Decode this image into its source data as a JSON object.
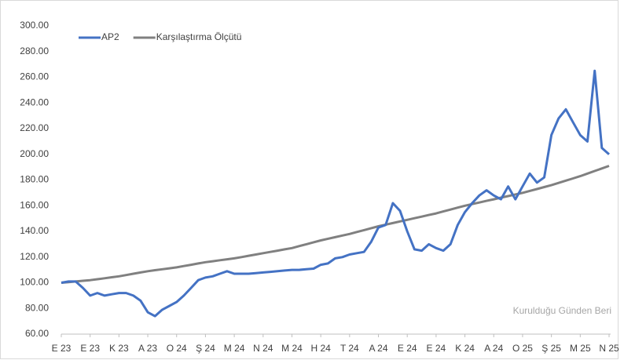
{
  "chart_data": {
    "type": "line",
    "annotation": "Kurulduğu Günden Beri",
    "categories": [
      "E 23",
      null,
      null,
      null,
      "E 23",
      null,
      null,
      null,
      "K 23",
      null,
      null,
      null,
      "A 23",
      null,
      null,
      null,
      "O 24",
      null,
      null,
      null,
      "Ş 24",
      null,
      null,
      null,
      "M 24",
      null,
      null,
      null,
      "N 24",
      null,
      null,
      null,
      "M 24",
      null,
      null,
      null,
      "H 24",
      null,
      null,
      null,
      "T 24",
      null,
      null,
      null,
      "A 24",
      null,
      null,
      null,
      "E 24",
      null,
      null,
      null,
      "E 24",
      null,
      null,
      null,
      "K 24",
      null,
      null,
      null,
      "A 24",
      null,
      null,
      null,
      "O 25",
      null,
      null,
      null,
      "Ş 25",
      null,
      null,
      null,
      "M 25",
      null,
      null,
      null,
      "N 25"
    ],
    "series": [
      {
        "name": "AP2",
        "color": "#4472c4",
        "values": [
          100,
          101,
          101,
          96,
          90,
          92,
          90,
          91,
          92,
          92,
          90,
          86,
          77,
          74,
          79,
          82,
          85,
          90,
          96,
          102,
          104,
          105,
          107,
          109,
          107,
          107,
          107,
          107.5,
          108,
          108.5,
          109,
          109.5,
          110,
          110,
          110.5,
          111,
          114,
          115,
          119,
          120,
          122,
          123,
          124,
          132,
          143,
          145,
          162,
          156,
          140,
          126,
          125,
          130,
          127,
          125,
          130,
          145,
          155,
          162,
          168,
          172,
          168,
          165,
          175,
          165,
          175,
          185,
          178,
          182,
          215,
          228,
          235,
          225,
          215,
          210,
          265,
          205,
          200
        ]
      },
      {
        "name": "Karşılaştırma Ölçütü",
        "color": "#808080",
        "values": [
          100,
          100.5,
          101,
          101.5,
          102,
          102.75,
          103.5,
          104.25,
          105,
          106,
          107,
          108,
          109,
          109.75,
          110.5,
          111.25,
          112,
          113,
          114,
          115,
          116,
          116.75,
          117.5,
          118.25,
          119,
          120,
          121,
          122,
          123,
          124,
          125,
          126,
          127,
          128.5,
          130,
          131.5,
          133,
          134.25,
          135.5,
          136.75,
          138,
          139.5,
          141,
          142.5,
          144,
          145.25,
          146.5,
          147.75,
          149,
          150.25,
          151.5,
          152.75,
          154,
          155.5,
          157,
          158.5,
          160,
          161.25,
          162.5,
          163.75,
          165,
          166.25,
          167.5,
          168.75,
          170,
          171.5,
          173,
          174.5,
          176,
          177.75,
          179.5,
          181.25,
          183,
          185,
          187,
          189,
          191
        ]
      }
    ],
    "ylim": [
      60,
      300
    ],
    "yticks": [
      {
        "value": 60,
        "label": "60.00"
      },
      {
        "value": 80,
        "label": "80.00"
      },
      {
        "value": 100,
        "label": "100.00"
      },
      {
        "value": 120,
        "label": "120.00"
      },
      {
        "value": 140,
        "label": "140.00"
      },
      {
        "value": 160,
        "label": "160.00"
      },
      {
        "value": 180,
        "label": "180.00"
      },
      {
        "value": 200,
        "label": "200.00"
      },
      {
        "value": 220,
        "label": "220.00"
      },
      {
        "value": 240,
        "label": "240.00"
      },
      {
        "value": 260,
        "label": "260.00"
      },
      {
        "value": 280,
        "label": "280.00"
      },
      {
        "value": 300,
        "label": "300.00"
      }
    ],
    "legend": "top-left",
    "grid": false
  }
}
